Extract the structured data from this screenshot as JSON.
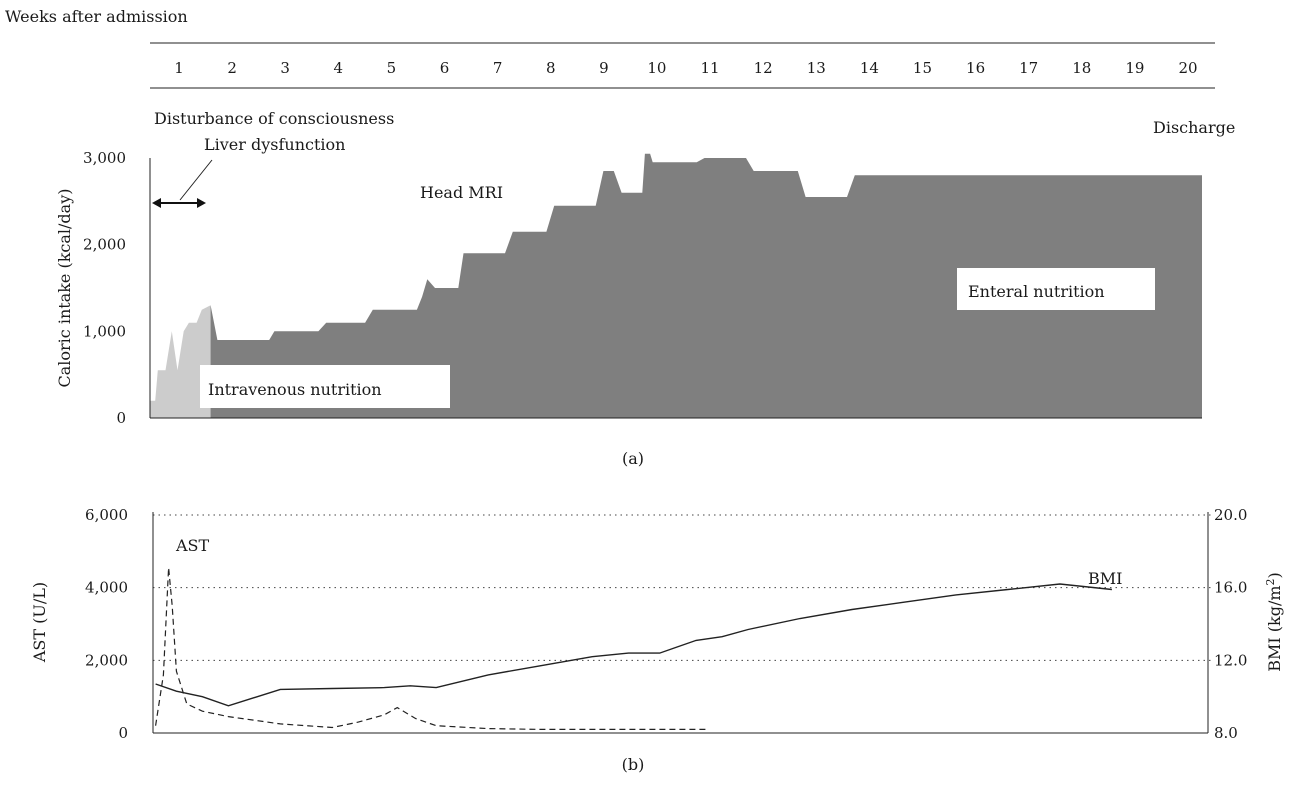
{
  "header": {
    "weeks_label": "Weeks after admission",
    "weeks": [
      "1",
      "2",
      "3",
      "4",
      "5",
      "6",
      "7",
      "8",
      "9",
      "10",
      "11",
      "12",
      "13",
      "14",
      "15",
      "16",
      "17",
      "18",
      "19",
      "20"
    ]
  },
  "annotations": {
    "disturbance": "Disturbance of consciousness",
    "liver": "Liver dysfunction",
    "head_mri": "Head MRI",
    "discharge": "Discharge",
    "intravenous": "Intravenous nutrition",
    "enteral": "Enteral nutrition"
  },
  "panel_labels": {
    "a": "(a)",
    "b": "(b)"
  },
  "colors": {
    "intravenous": "#cccccc",
    "enteral": "#7f7f7f",
    "line": "#222222"
  },
  "chart_data": [
    {
      "type": "area",
      "ylabel": "Caloric intake (kcal/day)",
      "yticks": [
        "0",
        "1,000",
        "2,000",
        "3,000"
      ],
      "ylim": [
        0,
        3000
      ],
      "xlim": [
        0.55,
        20.85
      ],
      "x_unit": "week",
      "series": [
        {
          "name": "Intravenous nutrition",
          "points": [
            [
              0.55,
              200
            ],
            [
              0.65,
              200
            ],
            [
              0.7,
              550
            ],
            [
              0.85,
              550
            ],
            [
              0.97,
              1000
            ],
            [
              1.08,
              550
            ],
            [
              1.2,
              1000
            ],
            [
              1.3,
              1100
            ],
            [
              1.45,
              1100
            ],
            [
              1.55,
              1250
            ],
            [
              1.72,
              1300
            ],
            [
              1.8,
              700
            ],
            [
              6.55,
              700
            ],
            [
              6.75,
              600
            ],
            [
              10.65,
              600
            ],
            [
              10.78,
              300
            ],
            [
              11.3,
              300
            ],
            [
              11.3,
              0
            ]
          ]
        },
        {
          "name": "Enteral nutrition",
          "points": [
            [
              1.72,
              1300
            ],
            [
              1.85,
              900
            ],
            [
              2.85,
              900
            ],
            [
              2.95,
              1000
            ],
            [
              3.8,
              1000
            ],
            [
              3.95,
              1100
            ],
            [
              4.7,
              1100
            ],
            [
              4.85,
              1250
            ],
            [
              5.7,
              1250
            ],
            [
              5.8,
              1400
            ],
            [
              5.9,
              1600
            ],
            [
              6.05,
              1500
            ],
            [
              6.5,
              1500
            ],
            [
              6.6,
              1900
            ],
            [
              7.4,
              1900
            ],
            [
              7.55,
              2150
            ],
            [
              8.2,
              2150
            ],
            [
              8.35,
              2450
            ],
            [
              9.15,
              2450
            ],
            [
              9.3,
              2850
            ],
            [
              9.5,
              2850
            ],
            [
              9.65,
              2600
            ],
            [
              10.05,
              2600
            ],
            [
              10.1,
              3050
            ],
            [
              10.2,
              3050
            ],
            [
              10.25,
              2950
            ],
            [
              11.1,
              2950
            ],
            [
              11.25,
              3000
            ],
            [
              12.05,
              3000
            ],
            [
              12.2,
              2850
            ],
            [
              13.05,
              2850
            ],
            [
              13.2,
              2550
            ],
            [
              14.0,
              2550
            ],
            [
              14.15,
              2800
            ],
            [
              20.85,
              2800
            ]
          ]
        }
      ]
    },
    {
      "type": "line",
      "ylabel": "AST (U/L)",
      "y2label": "BMI (kg/m2)",
      "yticks": [
        "0",
        "2,000",
        "4,000",
        "6,000"
      ],
      "y2ticks": [
        "8.0",
        "12.0",
        "16.0",
        "20.0"
      ],
      "ylim": [
        0,
        6000
      ],
      "y2lim": [
        8,
        20
      ],
      "grid": true,
      "xlim": [
        0.55,
        20.85
      ],
      "x_unit": "week",
      "series": [
        {
          "name": "AST",
          "axis": "left",
          "style": "dashed",
          "points": [
            [
              0.6,
              200
            ],
            [
              0.75,
              1600
            ],
            [
              0.85,
              4550
            ],
            [
              0.92,
              3500
            ],
            [
              1.0,
              1700
            ],
            [
              1.2,
              800
            ],
            [
              1.5,
              600
            ],
            [
              2.0,
              450
            ],
            [
              3.0,
              250
            ],
            [
              4.0,
              150
            ],
            [
              4.5,
              300
            ],
            [
              5.0,
              500
            ],
            [
              5.25,
              700
            ],
            [
              5.6,
              400
            ],
            [
              6.0,
              200
            ],
            [
              7.0,
              120
            ],
            [
              8.0,
              100
            ],
            [
              9.0,
              100
            ],
            [
              10.0,
              100
            ],
            [
              10.5,
              100
            ],
            [
              11.2,
              100
            ]
          ]
        },
        {
          "name": "BMI",
          "axis": "right",
          "style": "solid",
          "points": [
            [
              0.6,
              10.7
            ],
            [
              1.0,
              10.3
            ],
            [
              1.5,
              10.0
            ],
            [
              2.0,
              9.5
            ],
            [
              3.0,
              10.4
            ],
            [
              4.0,
              10.45
            ],
            [
              5.0,
              10.5
            ],
            [
              5.5,
              10.6
            ],
            [
              6.0,
              10.5
            ],
            [
              7.0,
              11.2
            ],
            [
              8.0,
              11.7
            ],
            [
              9.0,
              12.2
            ],
            [
              9.7,
              12.4
            ],
            [
              10.3,
              12.4
            ],
            [
              10.6,
              12.7
            ],
            [
              11.0,
              13.1
            ],
            [
              11.5,
              13.3
            ],
            [
              12.0,
              13.7
            ],
            [
              13.0,
              14.3
            ],
            [
              14.0,
              14.8
            ],
            [
              15.0,
              15.2
            ],
            [
              16.0,
              15.6
            ],
            [
              17.0,
              15.9
            ],
            [
              18.0,
              16.2
            ],
            [
              19.0,
              15.9
            ]
          ]
        }
      ]
    }
  ]
}
